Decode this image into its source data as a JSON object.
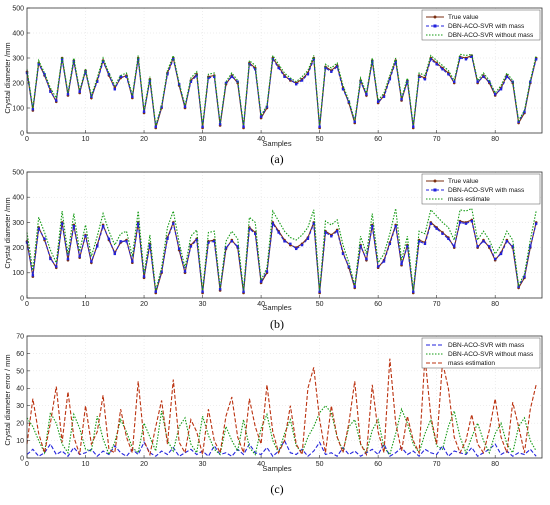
{
  "captions": [
    "(a)",
    "(b)",
    "(c)"
  ],
  "chart_data": [
    {
      "type": "line",
      "panel": "a",
      "xlabel": "Samples",
      "ylabel": "Crystal diameter /mm",
      "xlim": [
        0,
        88
      ],
      "ylim": [
        0,
        500
      ],
      "xticks": [
        0,
        10,
        20,
        30,
        40,
        50,
        60,
        70,
        80
      ],
      "yticks": [
        0,
        100,
        200,
        300,
        400,
        500
      ],
      "grid": true,
      "legend_position": "top-right",
      "x": [
        0,
        1,
        2,
        3,
        4,
        5,
        6,
        7,
        8,
        9,
        10,
        11,
        12,
        13,
        14,
        15,
        16,
        17,
        18,
        19,
        20,
        21,
        22,
        23,
        24,
        25,
        26,
        27,
        28,
        29,
        30,
        31,
        32,
        33,
        34,
        35,
        36,
        37,
        38,
        39,
        40,
        41,
        42,
        43,
        44,
        45,
        46,
        47,
        48,
        49,
        50,
        51,
        52,
        53,
        54,
        55,
        56,
        57,
        58,
        59,
        60,
        61,
        62,
        63,
        64,
        65,
        66,
        67,
        68,
        69,
        70,
        71,
        72,
        73,
        74,
        75,
        76,
        77,
        78,
        79,
        80,
        81,
        82,
        83,
        84,
        85,
        86,
        87
      ],
      "series": [
        {
          "name": "True value",
          "color": "#7a2e10",
          "marker": "dot",
          "dash": "",
          "values": [
            245,
            90,
            280,
            230,
            170,
            125,
            300,
            150,
            290,
            160,
            250,
            140,
            210,
            290,
            230,
            180,
            220,
            230,
            140,
            300,
            80,
            215,
            20,
            100,
            240,
            300,
            190,
            100,
            210,
            235,
            20,
            225,
            230,
            30,
            195,
            230,
            200,
            20,
            280,
            260,
            60,
            100,
            300,
            265,
            230,
            210,
            200,
            215,
            240,
            300,
            20,
            265,
            250,
            270,
            180,
            120,
            40,
            210,
            150,
            290,
            120,
            150,
            220,
            290,
            130,
            210,
            20,
            230,
            220,
            300,
            280,
            260,
            240,
            200,
            305,
            300,
            310,
            200,
            230,
            200,
            150,
            180,
            230,
            200,
            40,
            80,
            200,
            300
          ]
        },
        {
          "name": "DBN-ACO-SVR with mass",
          "color": "#2222dd",
          "marker": "square",
          "dash": "3,2",
          "values": [
            240,
            95,
            275,
            235,
            165,
            130,
            295,
            155,
            285,
            165,
            245,
            145,
            205,
            285,
            235,
            175,
            225,
            225,
            145,
            295,
            85,
            210,
            25,
            105,
            235,
            295,
            195,
            105,
            205,
            230,
            25,
            220,
            225,
            35,
            200,
            225,
            205,
            25,
            275,
            255,
            65,
            105,
            295,
            260,
            225,
            215,
            195,
            210,
            235,
            295,
            25,
            260,
            245,
            265,
            175,
            125,
            45,
            205,
            155,
            285,
            125,
            145,
            215,
            285,
            135,
            205,
            25,
            225,
            215,
            295,
            275,
            255,
            235,
            205,
            300,
            295,
            305,
            205,
            225,
            205,
            155,
            175,
            225,
            205,
            45,
            85,
            205,
            295
          ]
        },
        {
          "name": "DBN-ACO-SVR without mass",
          "color": "#119911",
          "marker": "",
          "dash": "1.5,1.5",
          "values": [
            255,
            100,
            290,
            240,
            180,
            140,
            305,
            160,
            300,
            170,
            255,
            150,
            220,
            300,
            240,
            190,
            230,
            240,
            150,
            310,
            90,
            225,
            30,
            110,
            250,
            310,
            200,
            110,
            220,
            245,
            30,
            235,
            240,
            40,
            205,
            240,
            210,
            30,
            290,
            270,
            70,
            110,
            310,
            275,
            240,
            220,
            205,
            225,
            250,
            310,
            30,
            275,
            260,
            280,
            190,
            130,
            50,
            220,
            160,
            300,
            130,
            160,
            230,
            300,
            140,
            220,
            30,
            240,
            230,
            310,
            290,
            270,
            250,
            210,
            315,
            310,
            315,
            210,
            240,
            210,
            160,
            190,
            240,
            210,
            50,
            90,
            210,
            310
          ]
        }
      ]
    },
    {
      "type": "line",
      "panel": "b",
      "xlabel": "Samples",
      "ylabel": "Crystal diameter /mm",
      "xlim": [
        0,
        88
      ],
      "ylim": [
        0,
        500
      ],
      "xticks": [
        0,
        10,
        20,
        30,
        40,
        50,
        60,
        70,
        80
      ],
      "yticks": [
        0,
        100,
        200,
        300,
        400,
        500
      ],
      "grid": true,
      "legend_position": "top-right",
      "x": [
        0,
        1,
        2,
        3,
        4,
        5,
        6,
        7,
        8,
        9,
        10,
        11,
        12,
        13,
        14,
        15,
        16,
        17,
        18,
        19,
        20,
        21,
        22,
        23,
        24,
        25,
        26,
        27,
        28,
        29,
        30,
        31,
        32,
        33,
        34,
        35,
        36,
        37,
        38,
        39,
        40,
        41,
        42,
        43,
        44,
        45,
        46,
        47,
        48,
        49,
        50,
        51,
        52,
        53,
        54,
        55,
        56,
        57,
        58,
        59,
        60,
        61,
        62,
        63,
        64,
        65,
        66,
        67,
        68,
        69,
        70,
        71,
        72,
        73,
        74,
        75,
        76,
        77,
        78,
        79,
        80,
        81,
        82,
        83,
        84,
        85,
        86,
        87
      ],
      "series": [
        {
          "name": "True value",
          "color": "#7a2e10",
          "marker": "dot",
          "dash": "",
          "values": [
            225,
            85,
            280,
            230,
            160,
            120,
            300,
            150,
            290,
            160,
            250,
            140,
            210,
            290,
            230,
            180,
            220,
            230,
            140,
            300,
            80,
            215,
            20,
            100,
            240,
            300,
            190,
            100,
            210,
            235,
            20,
            225,
            230,
            30,
            195,
            230,
            200,
            20,
            280,
            260,
            60,
            100,
            300,
            265,
            230,
            210,
            200,
            215,
            240,
            300,
            20,
            265,
            250,
            270,
            180,
            120,
            40,
            210,
            150,
            290,
            120,
            150,
            220,
            290,
            130,
            210,
            20,
            230,
            220,
            300,
            280,
            260,
            240,
            200,
            305,
            300,
            310,
            200,
            230,
            200,
            150,
            180,
            230,
            200,
            40,
            80,
            200,
            300
          ]
        },
        {
          "name": "DBN-ACO-SVR with mass",
          "color": "#2222dd",
          "marker": "square",
          "dash": "3,2",
          "values": [
            220,
            90,
            275,
            235,
            155,
            125,
            295,
            155,
            285,
            165,
            245,
            145,
            205,
            285,
            235,
            175,
            225,
            225,
            145,
            295,
            85,
            210,
            25,
            105,
            235,
            295,
            195,
            105,
            205,
            230,
            25,
            220,
            225,
            35,
            200,
            225,
            205,
            25,
            275,
            255,
            65,
            105,
            295,
            260,
            225,
            215,
            195,
            210,
            235,
            295,
            25,
            260,
            245,
            265,
            175,
            125,
            45,
            205,
            155,
            285,
            125,
            145,
            215,
            285,
            135,
            205,
            25,
            225,
            215,
            295,
            275,
            255,
            235,
            205,
            300,
            295,
            305,
            205,
            225,
            205,
            155,
            175,
            225,
            205,
            45,
            85,
            205,
            295
          ]
        },
        {
          "name": "mass estimate",
          "color": "#119911",
          "marker": "",
          "dash": "1.5,1.5",
          "values": [
            260,
            110,
            320,
            260,
            190,
            140,
            345,
            175,
            335,
            185,
            290,
            165,
            245,
            335,
            265,
            210,
            255,
            265,
            165,
            345,
            95,
            250,
            30,
            120,
            280,
            345,
            220,
            120,
            245,
            270,
            30,
            260,
            265,
            40,
            225,
            265,
            235,
            30,
            320,
            300,
            70,
            120,
            345,
            305,
            265,
            240,
            230,
            250,
            280,
            350,
            30,
            305,
            290,
            310,
            210,
            140,
            50,
            245,
            175,
            335,
            140,
            175,
            255,
            355,
            150,
            245,
            30,
            265,
            255,
            350,
            325,
            300,
            280,
            230,
            350,
            345,
            355,
            230,
            265,
            230,
            175,
            210,
            265,
            230,
            50,
            95,
            230,
            345
          ]
        }
      ]
    },
    {
      "type": "line",
      "panel": "c",
      "xlabel": "Samples",
      "ylabel": "Crystal diameter error / mm",
      "xlim": [
        0,
        88
      ],
      "ylim": [
        0,
        70
      ],
      "xticks": [
        0,
        10,
        20,
        30,
        40,
        50,
        60,
        70,
        80
      ],
      "yticks": [
        0,
        10,
        20,
        30,
        40,
        50,
        60,
        70
      ],
      "grid": true,
      "legend_position": "top-right",
      "x": [
        0,
        1,
        2,
        3,
        4,
        5,
        6,
        7,
        8,
        9,
        10,
        11,
        12,
        13,
        14,
        15,
        16,
        17,
        18,
        19,
        20,
        21,
        22,
        23,
        24,
        25,
        26,
        27,
        28,
        29,
        30,
        31,
        32,
        33,
        34,
        35,
        36,
        37,
        38,
        39,
        40,
        41,
        42,
        43,
        44,
        45,
        46,
        47,
        48,
        49,
        50,
        51,
        52,
        53,
        54,
        55,
        56,
        57,
        58,
        59,
        60,
        61,
        62,
        63,
        64,
        65,
        66,
        67,
        68,
        69,
        70,
        71,
        72,
        73,
        74,
        75,
        76,
        77,
        78,
        79,
        80,
        81,
        82,
        83,
        84,
        85,
        86,
        87
      ],
      "series": [
        {
          "name": "DBN-ACO-SVR with mass",
          "color": "#2222dd",
          "marker": "",
          "dash": "4,2",
          "values": [
            2,
            5,
            1,
            3,
            8,
            2,
            4,
            1,
            6,
            2,
            3,
            5,
            1,
            4,
            2,
            7,
            3,
            1,
            5,
            2,
            9,
            3,
            1,
            4,
            2,
            6,
            1,
            3,
            5,
            2,
            4,
            1,
            7,
            2,
            3,
            1,
            5,
            2,
            8,
            3,
            2,
            6,
            1,
            4,
            10,
            3,
            2,
            5,
            1,
            4,
            9,
            2,
            3,
            1,
            6,
            2,
            4,
            1,
            3,
            5,
            2,
            8,
            1,
            3,
            6,
            2,
            4,
            1,
            5,
            3,
            2,
            7,
            1,
            4,
            3,
            2,
            6,
            1,
            3,
            5,
            8,
            2,
            4,
            1,
            3,
            2,
            5,
            1
          ]
        },
        {
          "name": "DBN-ACO-SVR without mass",
          "color": "#119911",
          "marker": "",
          "dash": "1.5,1.5",
          "values": [
            23,
            18,
            10,
            3,
            26,
            20,
            8,
            3,
            25,
            17,
            5,
            4,
            24,
            11,
            2,
            9,
            22,
            15,
            6,
            3,
            20,
            12,
            4,
            27,
            10,
            4,
            18,
            23,
            8,
            3,
            24,
            13,
            5,
            2,
            18,
            10,
            4,
            22,
            6,
            2,
            17,
            25,
            10,
            3,
            14,
            22,
            7,
            3,
            12,
            18,
            26,
            30,
            26,
            12,
            4,
            18,
            22,
            8,
            3,
            16,
            22,
            6,
            2,
            14,
            28,
            20,
            8,
            3,
            14,
            22,
            7,
            5,
            18,
            27,
            12,
            3,
            12,
            20,
            10,
            3,
            14,
            20,
            8,
            3,
            18,
            23,
            10,
            4
          ]
        },
        {
          "name": "mass estimation",
          "color": "#bb3311",
          "marker": "",
          "dash": "4,2",
          "values": [
            8,
            34,
            14,
            3,
            20,
            41,
            9,
            38,
            12,
            2,
            30,
            8,
            15,
            36,
            5,
            3,
            28,
            12,
            3,
            44,
            10,
            2,
            18,
            33,
            8,
            45,
            9,
            3,
            22,
            15,
            2,
            28,
            10,
            3,
            24,
            35,
            12,
            3,
            34,
            18,
            8,
            42,
            15,
            3,
            10,
            30,
            8,
            2,
            40,
            52,
            22,
            3,
            30,
            12,
            3,
            20,
            44,
            8,
            2,
            42,
            15,
            3,
            57,
            20,
            4,
            24,
            10,
            3,
            58,
            24,
            8,
            55,
            40,
            12,
            3,
            10,
            25,
            8,
            3,
            16,
            34,
            12,
            3,
            32,
            18,
            3,
            28,
            42
          ]
        }
      ]
    }
  ]
}
